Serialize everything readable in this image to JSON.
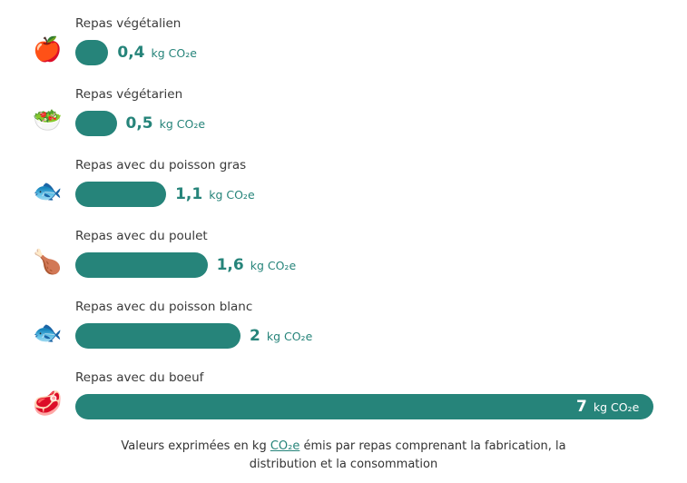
{
  "chart_data": {
    "type": "bar",
    "orientation": "horizontal",
    "categories": [
      "Repas végétalien",
      "Repas végétarien",
      "Repas avec du poisson gras",
      "Repas avec du poulet",
      "Repas avec du poisson blanc",
      "Repas avec du boeuf"
    ],
    "values": [
      0.4,
      0.5,
      1.1,
      1.6,
      2,
      7
    ],
    "value_labels": [
      "0,4",
      "0,5",
      "1,1",
      "1,6",
      "2",
      "7"
    ],
    "unit": "kg CO₂e",
    "icons": [
      "apple-icon",
      "salad-icon",
      "fish-icon",
      "chicken-leg-icon",
      "fish-icon",
      "steak-icon"
    ],
    "xlim": [
      0,
      7
    ],
    "grid": false,
    "bar_color": "#26847a"
  },
  "footnote": {
    "before": "Valeurs exprimées en kg ",
    "link": "CO₂e",
    "after_line1": " émis par repas comprenant la fabrication, la",
    "line2": "distribution et la consommation"
  }
}
